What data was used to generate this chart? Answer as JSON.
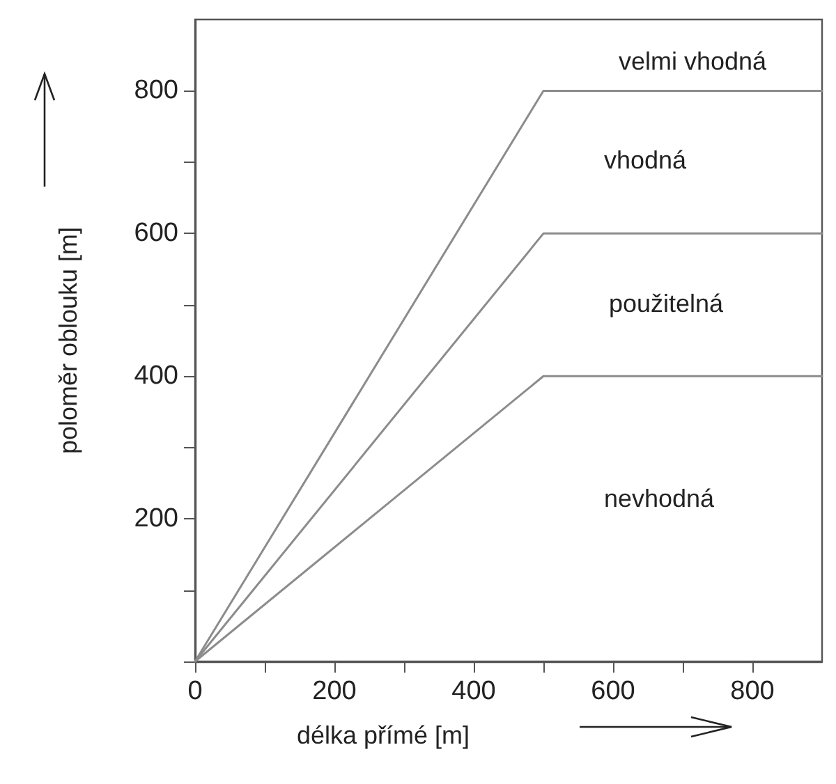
{
  "chart_data": {
    "type": "line",
    "xlabel": "délka přímé [m]",
    "ylabel": "poloměr oblouku [m]",
    "xlim": [
      0,
      900
    ],
    "ylim": [
      0,
      900
    ],
    "xticks": [
      0,
      {
        "value": 100,
        "label": null
      },
      200,
      {
        "value": 300,
        "label": null
      },
      400,
      {
        "value": 500,
        "label": null
      },
      600,
      {
        "value": 700,
        "label": null
      },
      800
    ],
    "yticks": [
      {
        "value": 0,
        "label": null
      },
      {
        "value": 100,
        "label": null
      },
      200,
      {
        "value": 300,
        "label": null
      },
      400,
      {
        "value": 500,
        "label": null
      },
      600,
      {
        "value": 700,
        "label": null
      },
      800
    ],
    "series": [
      {
        "color": "#8c8c8c",
        "x": [
          0,
          500,
          900
        ],
        "values": [
          0,
          800,
          800
        ]
      },
      {
        "color": "#8c8c8c",
        "x": [
          0,
          500,
          900
        ],
        "values": [
          0,
          600,
          600
        ]
      },
      {
        "color": "#8c8c8c",
        "x": [
          0,
          500,
          900
        ],
        "values": [
          0,
          400,
          400
        ]
      }
    ],
    "annotations": [
      "velmi vhodná",
      "vhodná",
      "použitelná",
      "nevhodná"
    ],
    "grid": false,
    "marker": "none",
    "line_style": "solid"
  }
}
